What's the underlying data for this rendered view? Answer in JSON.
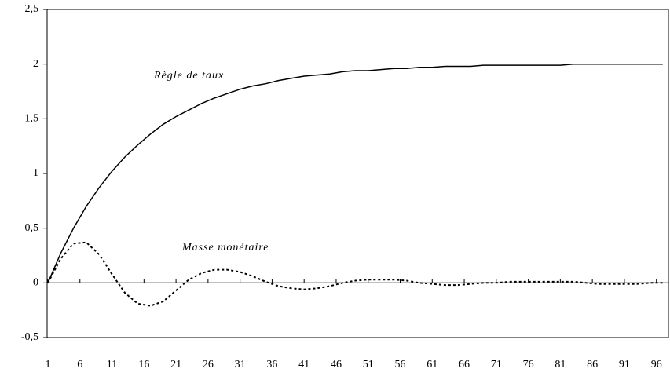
{
  "chart_data": {
    "type": "line",
    "x": [
      1,
      3,
      5,
      7,
      9,
      11,
      13,
      15,
      17,
      19,
      21,
      23,
      25,
      27,
      29,
      31,
      33,
      35,
      37,
      39,
      41,
      43,
      45,
      47,
      49,
      51,
      53,
      55,
      57,
      59,
      61,
      63,
      65,
      67,
      69,
      71,
      73,
      75,
      77,
      79,
      81,
      83,
      85,
      87,
      89,
      91,
      93,
      95,
      97
    ],
    "series": [
      {
        "name": "Règle de taux",
        "color": "#000000",
        "dashed": false,
        "values": [
          0,
          0.27,
          0.5,
          0.7,
          0.87,
          1.02,
          1.15,
          1.26,
          1.36,
          1.45,
          1.52,
          1.58,
          1.64,
          1.69,
          1.73,
          1.77,
          1.8,
          1.82,
          1.85,
          1.87,
          1.89,
          1.9,
          1.91,
          1.93,
          1.94,
          1.94,
          1.95,
          1.96,
          1.96,
          1.97,
          1.97,
          1.98,
          1.98,
          1.98,
          1.99,
          1.99,
          1.99,
          1.99,
          1.99,
          1.99,
          1.99,
          2.0,
          2.0,
          2.0,
          2.0,
          2.0,
          2.0,
          2.0,
          2.0
        ]
      },
      {
        "name": "Masse monétaire",
        "color": "#000000",
        "dashed": true,
        "values": [
          0,
          0.22,
          0.36,
          0.37,
          0.26,
          0.08,
          -0.09,
          -0.19,
          -0.21,
          -0.17,
          -0.07,
          0.03,
          0.09,
          0.12,
          0.12,
          0.1,
          0.06,
          0.01,
          -0.03,
          -0.05,
          -0.06,
          -0.05,
          -0.03,
          0.0,
          0.02,
          0.03,
          0.03,
          0.03,
          0.02,
          0.0,
          -0.01,
          -0.02,
          -0.02,
          -0.01,
          0,
          0,
          0.01,
          0.01,
          0.01,
          0.01,
          0.01,
          0.01,
          0.0,
          -0.01,
          -0.01,
          -0.01,
          -0.01,
          0,
          0
        ]
      }
    ],
    "xlim": [
      1,
      98
    ],
    "xticks": [
      1,
      6,
      11,
      16,
      21,
      26,
      31,
      36,
      41,
      46,
      51,
      56,
      61,
      66,
      71,
      76,
      81,
      86,
      91,
      96
    ],
    "ylim": [
      -0.5,
      2.5
    ],
    "yticks": [
      {
        "value": -0.5,
        "label": "-0,5"
      },
      0,
      {
        "value": 0.5,
        "label": "0,5"
      },
      1,
      {
        "value": 1.5,
        "label": "1,5"
      },
      2,
      {
        "value": 2.5,
        "label": "2,5"
      }
    ]
  }
}
